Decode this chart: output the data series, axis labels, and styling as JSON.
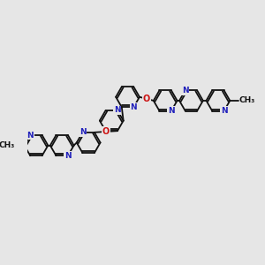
{
  "bg_color": "#e6e6e6",
  "bond_color": "#111111",
  "N_color": "#2020bb",
  "O_color": "#cc1111",
  "lw": 1.3,
  "fs": 6.5,
  "rs": 0.055,
  "dbo": 0.008,
  "figsize": [
    3.0,
    3.0
  ],
  "dpi": 100,
  "xlim": [
    -0.05,
    1.05
  ],
  "ylim": [
    0.15,
    0.85
  ]
}
